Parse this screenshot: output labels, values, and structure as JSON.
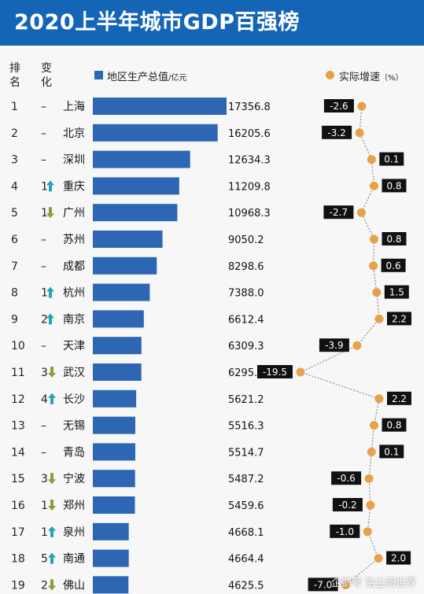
{
  "title": "2020上半年城市GDP百强榜",
  "headers": {
    "rank": "排名",
    "change": "变化"
  },
  "legend": {
    "gdp_label": "地区生产总值",
    "gdp_unit": "/亿元",
    "growth_label": "实际增速",
    "growth_unit": "（%）"
  },
  "colors": {
    "title_bg": "#1565b7",
    "bar": "#2d67b4",
    "dot": "#e8a04c",
    "label_box": "#111111",
    "up_arrow": "#25a3b8",
    "down_arrow": "#8d9b3a"
  },
  "watermark": "企鹅号 洛尘阅世界",
  "chart_data": {
    "type": "bar",
    "x_axis": {
      "gdp_min": 0,
      "gdp_max": 17356.8,
      "growth_min": -19.5,
      "growth_max": 2.2
    },
    "categories": [
      "上海",
      "北京",
      "深圳",
      "重庆",
      "广州",
      "苏州",
      "成都",
      "杭州",
      "南京",
      "天津",
      "武汉",
      "长沙",
      "无锡",
      "青岛",
      "宁波",
      "郑州",
      "泉州",
      "南通",
      "佛山"
    ],
    "rows": [
      {
        "rank": "1",
        "change": "–",
        "dir": "none",
        "city": "上海",
        "gdp": 17356.8,
        "gdp_label": "17356.8",
        "growth": -2.6,
        "growth_label": "-2.6"
      },
      {
        "rank": "2",
        "change": "–",
        "dir": "none",
        "city": "北京",
        "gdp": 16205.6,
        "gdp_label": "16205.6",
        "growth": -3.2,
        "growth_label": "-3.2"
      },
      {
        "rank": "3",
        "change": "–",
        "dir": "none",
        "city": "深圳",
        "gdp": 12634.3,
        "gdp_label": "12634.3",
        "growth": 0.1,
        "growth_label": "0.1"
      },
      {
        "rank": "4",
        "change": "1",
        "dir": "up",
        "city": "重庆",
        "gdp": 11209.8,
        "gdp_label": "11209.8",
        "growth": 0.8,
        "growth_label": "0.8"
      },
      {
        "rank": "5",
        "change": "1",
        "dir": "down",
        "city": "广州",
        "gdp": 10968.3,
        "gdp_label": "10968.3",
        "growth": -2.7,
        "growth_label": "-2.7"
      },
      {
        "rank": "6",
        "change": "–",
        "dir": "none",
        "city": "苏州",
        "gdp": 9050.2,
        "gdp_label": "9050.2",
        "growth": 0.8,
        "growth_label": "0.8"
      },
      {
        "rank": "7",
        "change": "–",
        "dir": "none",
        "city": "成都",
        "gdp": 8298.6,
        "gdp_label": "8298.6",
        "growth": 0.6,
        "growth_label": "0.6"
      },
      {
        "rank": "8",
        "change": "1",
        "dir": "up",
        "city": "杭州",
        "gdp": 7388.0,
        "gdp_label": "7388.0",
        "growth": 1.5,
        "growth_label": "1.5"
      },
      {
        "rank": "9",
        "change": "2",
        "dir": "up",
        "city": "南京",
        "gdp": 6612.4,
        "gdp_label": "6612.4",
        "growth": 2.2,
        "growth_label": "2.2"
      },
      {
        "rank": "10",
        "change": "–",
        "dir": "none",
        "city": "天津",
        "gdp": 6309.3,
        "gdp_label": "6309.3",
        "growth": -3.9,
        "growth_label": "-3.9"
      },
      {
        "rank": "11",
        "change": "3",
        "dir": "down",
        "city": "武汉",
        "gdp": 6295.3,
        "gdp_label": "6295.3",
        "growth": -19.5,
        "growth_label": "-19.5"
      },
      {
        "rank": "12",
        "change": "4",
        "dir": "up",
        "city": "长沙",
        "gdp": 5621.2,
        "gdp_label": "5621.2",
        "growth": 2.2,
        "growth_label": "2.2"
      },
      {
        "rank": "13",
        "change": "–",
        "dir": "none",
        "city": "无锡",
        "gdp": 5516.3,
        "gdp_label": "5516.3",
        "growth": 0.8,
        "growth_label": "0.8"
      },
      {
        "rank": "14",
        "change": "–",
        "dir": "none",
        "city": "青岛",
        "gdp": 5514.7,
        "gdp_label": "5514.7",
        "growth": 0.1,
        "growth_label": "0.1"
      },
      {
        "rank": "15",
        "change": "3",
        "dir": "down",
        "city": "宁波",
        "gdp": 5487.2,
        "gdp_label": "5487.2",
        "growth": -0.6,
        "growth_label": "-0.6"
      },
      {
        "rank": "16",
        "change": "1",
        "dir": "down",
        "city": "郑州",
        "gdp": 5459.6,
        "gdp_label": "5459.6",
        "growth": -0.2,
        "growth_label": "-0.2"
      },
      {
        "rank": "17",
        "change": "1",
        "dir": "up",
        "city": "泉州",
        "gdp": 4668.1,
        "gdp_label": "4668.1",
        "growth": -1.0,
        "growth_label": "-1.0"
      },
      {
        "rank": "18",
        "change": "5",
        "dir": "up",
        "city": "南通",
        "gdp": 4664.4,
        "gdp_label": "4664.4",
        "growth": 2.0,
        "growth_label": "2.0"
      },
      {
        "rank": "19",
        "change": "2",
        "dir": "down",
        "city": "佛山",
        "gdp": 4625.5,
        "gdp_label": "4625.5",
        "growth": -7.0,
        "growth_label": "-7.0"
      }
    ]
  }
}
